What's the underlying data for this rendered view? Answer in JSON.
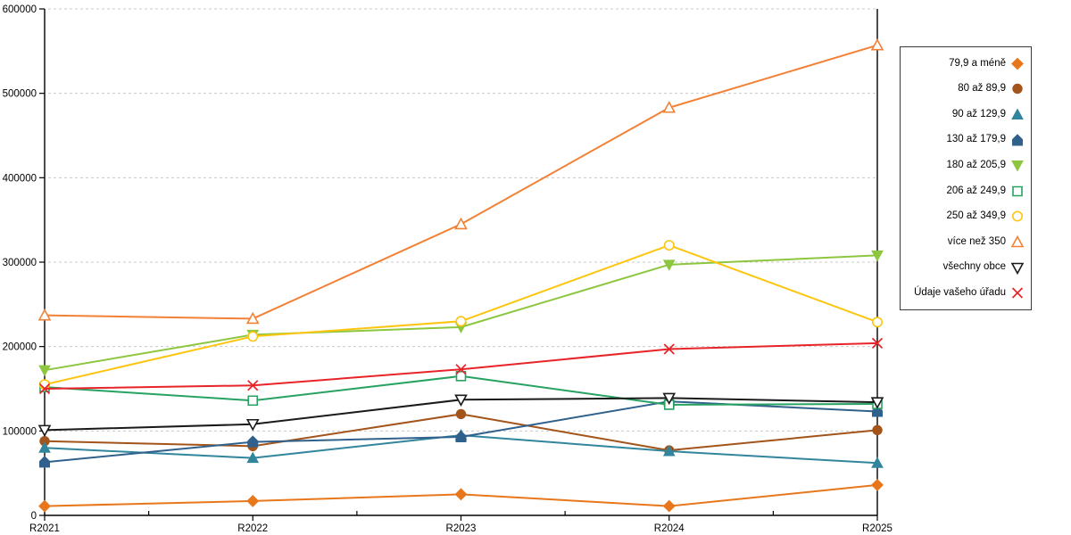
{
  "chart_data": {
    "type": "line",
    "title": "",
    "xlabel": "",
    "ylabel": "",
    "categories": [
      "R2021",
      "R2022",
      "R2023",
      "R2024",
      "R2025"
    ],
    "series": [
      {
        "name": "79,9 a méně",
        "color": "#E8771C",
        "marker": "diamond",
        "fill": "filled",
        "values": [
          11000,
          17000,
          25000,
          11000,
          36000
        ]
      },
      {
        "name": "80 až 89,9",
        "color": "#A3541A",
        "marker": "circle",
        "fill": "filled",
        "values": [
          88000,
          82000,
          120000,
          77000,
          101000
        ]
      },
      {
        "name": "90 až 129,9",
        "color": "#31859C",
        "marker": "triangle-up",
        "fill": "filled",
        "values": [
          80000,
          68000,
          95000,
          76000,
          62000
        ]
      },
      {
        "name": "130 až 179,9",
        "color": "#30618C",
        "marker": "pentagon",
        "fill": "filled",
        "values": [
          63000,
          87000,
          93000,
          135000,
          123000
        ]
      },
      {
        "name": "180 až 205,9",
        "color": "#8DC63F",
        "marker": "triangle-down",
        "fill": "filled",
        "values": [
          172000,
          214000,
          223000,
          297000,
          308000
        ]
      },
      {
        "name": "206 až 249,9",
        "color": "#28A263",
        "marker": "square",
        "fill": "open",
        "values": [
          152000,
          136000,
          165000,
          131000,
          132000
        ]
      },
      {
        "name": "250 až 349,9",
        "color": "#FDC510",
        "marker": "circle",
        "fill": "open",
        "values": [
          155000,
          212000,
          230000,
          320000,
          229000
        ]
      },
      {
        "name": "více než 350",
        "color": "#F28135",
        "marker": "triangle-up",
        "fill": "open",
        "values": [
          237000,
          233000,
          345000,
          483000,
          557000
        ]
      },
      {
        "name": "všechny obce",
        "color": "#1A1A1A",
        "marker": "triangle-down",
        "fill": "open",
        "values": [
          101000,
          108000,
          137000,
          139000,
          134000
        ]
      },
      {
        "name": "Údaje vašeho úřadu",
        "color": "#E82429",
        "marker": "x",
        "fill": "open",
        "values": [
          150000,
          154000,
          173000,
          197000,
          204000
        ]
      }
    ],
    "ylim": [
      0,
      600000
    ],
    "ytick_step": 100000,
    "ytick_labels": [
      "0",
      "100000",
      "200000",
      "300000",
      "400000",
      "500000",
      "600000"
    ],
    "grid": "horizontal-dashed",
    "gridline_color": "#C9C9C9",
    "axis_color": "#000000",
    "legend_position": "right"
  }
}
